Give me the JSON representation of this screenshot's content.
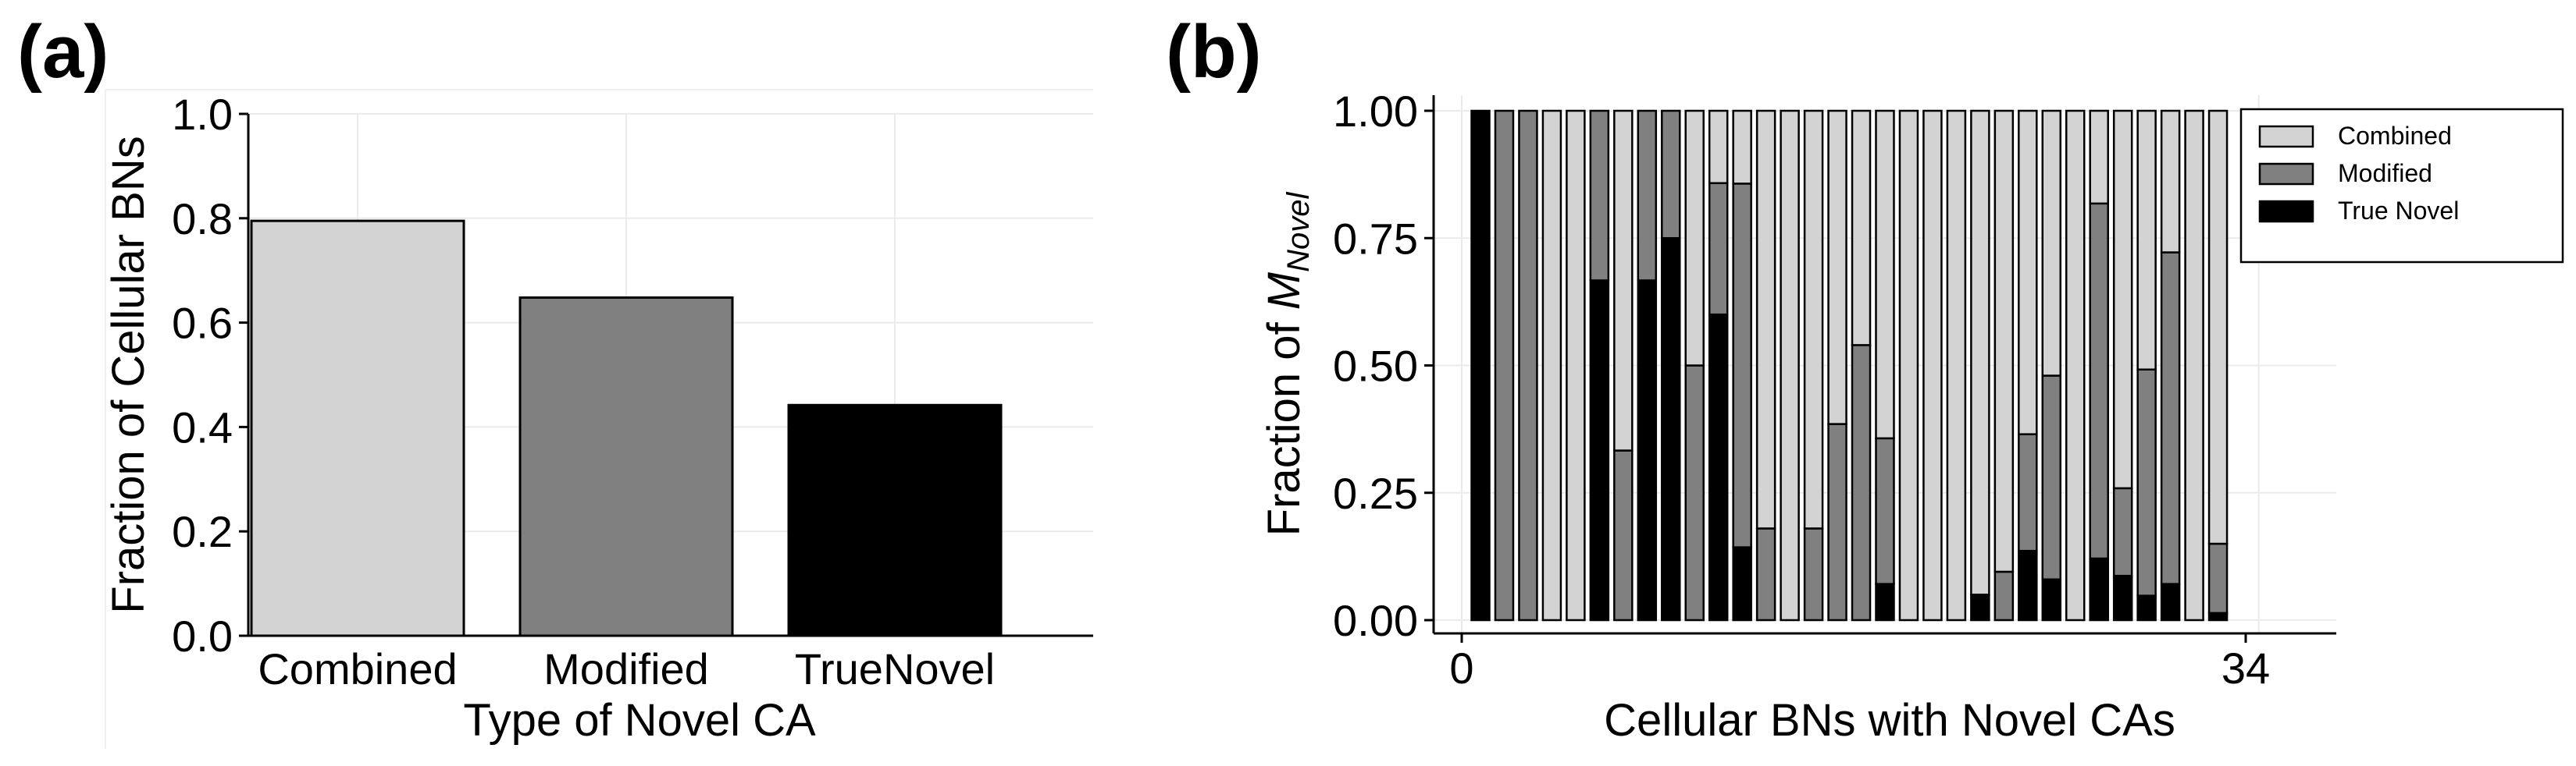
{
  "panels": {
    "a_label": "(a)",
    "b_label": "(b)"
  },
  "colors": {
    "combined": "#d3d3d3",
    "modified": "#808080",
    "true_novel": "#000000"
  },
  "chart_data": [
    {
      "type": "bar",
      "title": "",
      "categories": [
        "Combined",
        "Modified",
        "TrueNovel"
      ],
      "values": [
        0.795,
        0.648,
        0.442
      ],
      "xlabel": "Type of Novel CA",
      "ylabel": "Fraction of Cellular BNs",
      "ylim": [
        0,
        1.0
      ],
      "yticks": [
        "0.0",
        "0.2",
        "0.4",
        "0.6",
        "0.8",
        "1.0"
      ],
      "grid": true
    },
    {
      "type": "bar",
      "stacked": true,
      "title": "",
      "xlabel": "Cellular BNs with Novel CAs",
      "ylabel_prefix": "Fraction of ",
      "ylabel_symbol": "M",
      "ylabel_subscript": "Novel",
      "ylim": [
        0,
        1.0
      ],
      "yticks": [
        "0.00",
        "0.25",
        "0.50",
        "0.75",
        "1.00"
      ],
      "xtick_labels": [
        "0",
        "34"
      ],
      "grid": true,
      "legend_position": "top-right",
      "series": [
        {
          "name": "True Novel",
          "values": [
            1.0,
            0,
            0,
            0,
            0,
            0.667,
            0,
            0.667,
            0.75,
            0,
            0.6,
            0.143,
            0,
            0,
            0,
            0,
            0,
            0.071,
            0,
            0,
            0,
            0.05,
            0,
            0.136,
            0.08,
            0,
            0.121,
            0.087,
            0.048,
            0.071,
            0,
            0.014
          ]
        },
        {
          "name": "Modified",
          "values": [
            0,
            1.0,
            1.0,
            0,
            0,
            0.333,
            0.333,
            0.333,
            0.25,
            0.5,
            0.258,
            0.714,
            0.18,
            0,
            0.18,
            0.385,
            0.54,
            0.286,
            0,
            0,
            0,
            0,
            0.095,
            0.229,
            0.4,
            0,
            0.697,
            0.172,
            0.444,
            0.651,
            0,
            0.136
          ]
        },
        {
          "name": "Combined",
          "values": [
            0,
            0,
            0,
            1.0,
            1.0,
            0,
            0.667,
            0,
            0,
            0.5,
            0.142,
            0.143,
            0.82,
            1.0,
            0.82,
            0.615,
            0.46,
            0.643,
            1.0,
            1.0,
            1.0,
            0.95,
            0.905,
            0.635,
            0.52,
            1.0,
            0.182,
            0.741,
            0.508,
            0.278,
            1.0,
            0.85
          ]
        }
      ]
    }
  ]
}
